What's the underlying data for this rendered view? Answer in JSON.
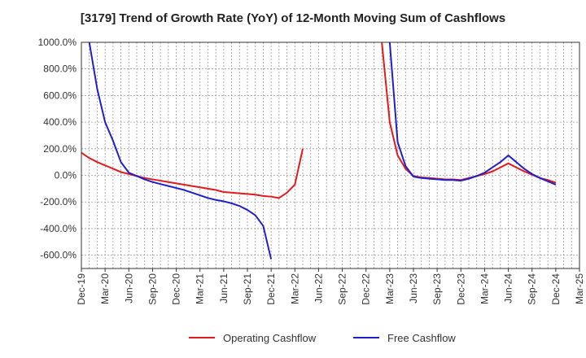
{
  "chart_data": {
    "type": "line",
    "title": "[3179]  Trend of Growth Rate (YoY) of 12-Month Moving Sum of Cashflows",
    "xlabel": "",
    "ylabel": "",
    "ylim": [
      -700,
      1000
    ],
    "y_ticks": [
      1000,
      800,
      600,
      400,
      200,
      0,
      -200,
      -400,
      -600
    ],
    "y_tick_labels": [
      "1000.0%",
      "800.0%",
      "600.0%",
      "400.0%",
      "200.0%",
      "0.0%",
      "-200.0%",
      "-400.0%",
      "-600.0%"
    ],
    "x_tick_labels": [
      "Dec-19",
      "Mar-20",
      "Jun-20",
      "Sep-20",
      "Dec-20",
      "Mar-21",
      "Jun-21",
      "Sep-21",
      "Dec-21",
      "Mar-22",
      "Jun-22",
      "Sep-22",
      "Dec-22",
      "Mar-23",
      "Jun-23",
      "Sep-23",
      "Dec-23",
      "Mar-24",
      "Jun-24",
      "Sep-24",
      "Mar-25"
    ],
    "x_tick_labels_full": [
      "Dec-19",
      "Mar-20",
      "Jun-20",
      "Sep-20",
      "Dec-20",
      "Mar-21",
      "Jun-21",
      "Sep-21",
      "Dec-21",
      "Mar-22",
      "Jun-22",
      "Sep-22",
      "Dec-22",
      "Mar-23",
      "Jun-23",
      "Sep-23",
      "Dec-23",
      "Mar-24",
      "Jun-24",
      "Sep-24",
      "Dec-24",
      "Mar-25"
    ],
    "x_range": [
      "Dec-19",
      "Mar-25"
    ],
    "grid": true,
    "legend_position": "bottom",
    "series": [
      {
        "name": "Operating Cashflow",
        "color": "#e31a1c",
        "points": [
          [
            "Dec-19",
            170
          ],
          [
            "Jan-20",
            130
          ],
          [
            "Feb-20",
            100
          ],
          [
            "Mar-20",
            75
          ],
          [
            "Apr-20",
            50
          ],
          [
            "May-20",
            25
          ],
          [
            "Jun-20",
            10
          ],
          [
            "Jul-20",
            -5
          ],
          [
            "Aug-20",
            -20
          ],
          [
            "Sep-20",
            -30
          ],
          [
            "Oct-20",
            -40
          ],
          [
            "Nov-20",
            -50
          ],
          [
            "Dec-20",
            -60
          ],
          [
            "Jan-21",
            -70
          ],
          [
            "Feb-21",
            -80
          ],
          [
            "Mar-21",
            -90
          ],
          [
            "Apr-21",
            -100
          ],
          [
            "May-21",
            -110
          ],
          [
            "Jun-21",
            -125
          ],
          [
            "Jul-21",
            -130
          ],
          [
            "Aug-21",
            -135
          ],
          [
            "Sep-21",
            -140
          ],
          [
            "Oct-21",
            -145
          ],
          [
            "Nov-21",
            -155
          ],
          [
            "Dec-21",
            -160
          ],
          [
            "Jan-22",
            -170
          ],
          [
            "Feb-22",
            -130
          ],
          [
            "Mar-22",
            -70
          ],
          [
            "Apr-22",
            200
          ],
          null,
          [
            "Feb-23",
            1000
          ],
          [
            "Mar-23",
            400
          ],
          [
            "Apr-23",
            150
          ],
          [
            "May-23",
            50
          ],
          [
            "Jun-23",
            -5
          ],
          [
            "Jul-23",
            -15
          ],
          [
            "Aug-23",
            -20
          ],
          [
            "Sep-23",
            -25
          ],
          [
            "Oct-23",
            -30
          ],
          [
            "Nov-23",
            -30
          ],
          [
            "Dec-23",
            -35
          ],
          [
            "Jan-24",
            -20
          ],
          [
            "Feb-24",
            -5
          ],
          [
            "Mar-24",
            10
          ],
          [
            "Apr-24",
            30
          ],
          [
            "May-24",
            60
          ],
          [
            "Jun-24",
            90
          ],
          [
            "Jul-24",
            60
          ],
          [
            "Aug-24",
            30
          ],
          [
            "Sep-24",
            5
          ],
          [
            "Oct-24",
            -20
          ],
          [
            "Nov-24",
            -35
          ],
          [
            "Dec-24",
            -55
          ]
        ]
      },
      {
        "name": "Free Cashflow",
        "color": "#1f1fcc",
        "points": [
          [
            "Jan-20",
            1000
          ],
          [
            "Feb-20",
            650
          ],
          [
            "Mar-20",
            400
          ],
          [
            "Apr-20",
            260
          ],
          [
            "May-20",
            100
          ],
          [
            "Jun-20",
            20
          ],
          [
            "Jul-20",
            -5
          ],
          [
            "Aug-20",
            -30
          ],
          [
            "Sep-20",
            -50
          ],
          [
            "Oct-20",
            -65
          ],
          [
            "Nov-20",
            -80
          ],
          [
            "Dec-20",
            -95
          ],
          [
            "Jan-21",
            -110
          ],
          [
            "Feb-21",
            -130
          ],
          [
            "Mar-21",
            -150
          ],
          [
            "Apr-21",
            -170
          ],
          [
            "May-21",
            -185
          ],
          [
            "Jun-21",
            -195
          ],
          [
            "Jul-21",
            -210
          ],
          [
            "Aug-21",
            -230
          ],
          [
            "Sep-21",
            -260
          ],
          [
            "Oct-21",
            -300
          ],
          [
            "Nov-21",
            -380
          ],
          [
            "Dec-21",
            -630
          ],
          null,
          [
            "Mar-23",
            1000
          ],
          [
            "Apr-23",
            250
          ],
          [
            "May-23",
            70
          ],
          [
            "Jun-23",
            -10
          ],
          [
            "Jul-23",
            -20
          ],
          [
            "Aug-23",
            -25
          ],
          [
            "Sep-23",
            -30
          ],
          [
            "Oct-23",
            -35
          ],
          [
            "Nov-23",
            -35
          ],
          [
            "Dec-23",
            -40
          ],
          [
            "Jan-24",
            -25
          ],
          [
            "Feb-24",
            -5
          ],
          [
            "Mar-24",
            20
          ],
          [
            "Apr-24",
            60
          ],
          [
            "May-24",
            100
          ],
          [
            "Jun-24",
            150
          ],
          [
            "Jul-24",
            100
          ],
          [
            "Aug-24",
            50
          ],
          [
            "Sep-24",
            10
          ],
          [
            "Oct-24",
            -20
          ],
          [
            "Nov-24",
            -45
          ],
          [
            "Dec-24",
            -70
          ]
        ]
      }
    ]
  }
}
